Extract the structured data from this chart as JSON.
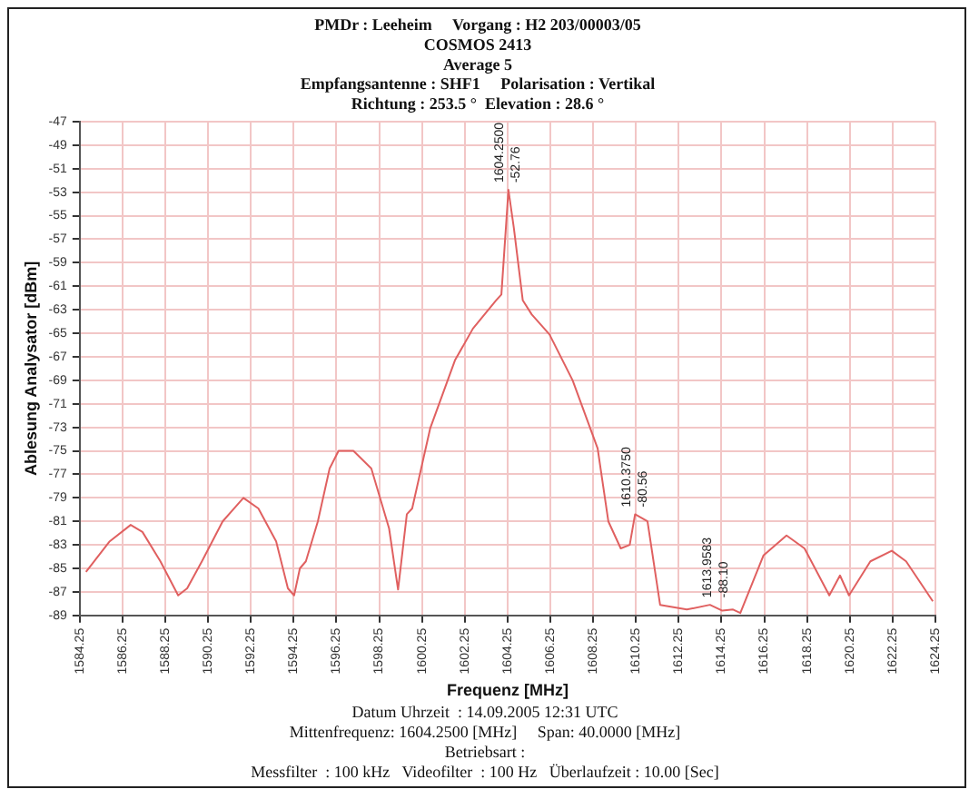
{
  "chart_data": {
    "type": "line",
    "title": "PMDr : Leeheim     Vorgang : H2 203/00003/05",
    "subtitle": "COSMOS 2413\nAverage 5\nEmpfangsantenne : SHF1     Polarisation : Vertikal\nRichtung : 253.5 °  Elevation : 28.6 °",
    "xlabel": "Frequenz [MHz]",
    "ylabel": "Ablesung Analysator [dBm]",
    "series": [
      {
        "color": "#e06060",
        "x": [
          1584.54,
          1585.65,
          1586.63,
          1587.18,
          1588.02,
          1588.85,
          1589.27,
          1589.96,
          1590.93,
          1591.9,
          1592.6,
          1593.43,
          1593.98,
          1594.27,
          1594.54,
          1594.82,
          1595.38,
          1595.93,
          1596.35,
          1597.04,
          1597.88,
          1598.71,
          1599.13,
          1599.54,
          1599.79,
          1600.63,
          1601.79,
          1602.63,
          1603.71,
          1603.96,
          1604.29,
          1604.54,
          1604.96,
          1605.38,
          1606.21,
          1607.29,
          1608.46,
          1608.96,
          1609.54,
          1609.96,
          1610.21,
          1610.79,
          1611.38,
          1612.63,
          1613.71,
          1614.29,
          1614.79,
          1615.13,
          1616.21,
          1617.29,
          1618.13,
          1619.29,
          1619.79,
          1620.21,
          1621.21,
          1622.21,
          1622.88,
          1624.13
        ],
        "values": [
          -85.3,
          -82.7,
          -81.3,
          -81.9,
          -84.4,
          -87.3,
          -86.7,
          -84.4,
          -81.0,
          -79.0,
          -79.9,
          -82.7,
          -86.7,
          -87.3,
          -85.0,
          -84.4,
          -81.0,
          -76.5,
          -75.0,
          -75.0,
          -76.5,
          -81.6,
          -86.8,
          -80.4,
          -79.9,
          -73.1,
          -67.3,
          -64.6,
          -62.2,
          -61.7,
          -52.8,
          -56.0,
          -62.2,
          -63.4,
          -65.1,
          -69.0,
          -74.8,
          -81.0,
          -83.3,
          -83.0,
          -80.4,
          -81.0,
          -88.1,
          -88.5,
          -88.1,
          -88.6,
          -88.5,
          -88.8,
          -83.9,
          -82.2,
          -83.3,
          -87.3,
          -85.6,
          -87.3,
          -84.4,
          -83.5,
          -84.4,
          -87.8
        ]
      }
    ],
    "xlim": [
      1584.25,
      1624.25
    ],
    "xticks": [
      1584.25,
      1586.25,
      1588.25,
      1590.25,
      1592.25,
      1594.25,
      1596.25,
      1598.25,
      1600.25,
      1602.25,
      1604.25,
      1606.25,
      1608.25,
      1610.25,
      1612.25,
      1614.25,
      1616.25,
      1618.25,
      1620.25,
      1622.25,
      1624.25
    ],
    "ylim": [
      -89,
      -47
    ],
    "yticks": [
      -47,
      -49,
      -51,
      -53,
      -55,
      -57,
      -59,
      -61,
      -63,
      -65,
      -67,
      -69,
      -71,
      -73,
      -75,
      -77,
      -79,
      -81,
      -83,
      -85,
      -87,
      -89
    ],
    "grid": true,
    "legend": false,
    "marker": "none",
    "line_style": "solid",
    "annotations": [
      {
        "text": "1604.2500",
        "x": 1604.25,
        "y": -52.8
      },
      {
        "text": "-52.76",
        "x": 1604.25,
        "y": -52.8
      },
      {
        "text": "1610.3750",
        "x": 1610.21,
        "y": -80.4
      },
      {
        "text": "-80.56",
        "x": 1610.21,
        "y": -80.4
      },
      {
        "text": "1613.9583",
        "x": 1613.96,
        "y": -88.1
      },
      {
        "text": "-88.10",
        "x": 1613.96,
        "y": -88.1
      },
      "Datum Uhrzeit  : 14.09.2005 12:31 UTC",
      "Mittenfrequenz: 1604.2500 [MHz]     Span: 40.0000 [MHz]",
      "Betriebsart :",
      "Messfilter  : 100 kHz   Videofilter  : 100 Hz   Überlaufzeit : 10.00 [Sec]"
    ]
  }
}
